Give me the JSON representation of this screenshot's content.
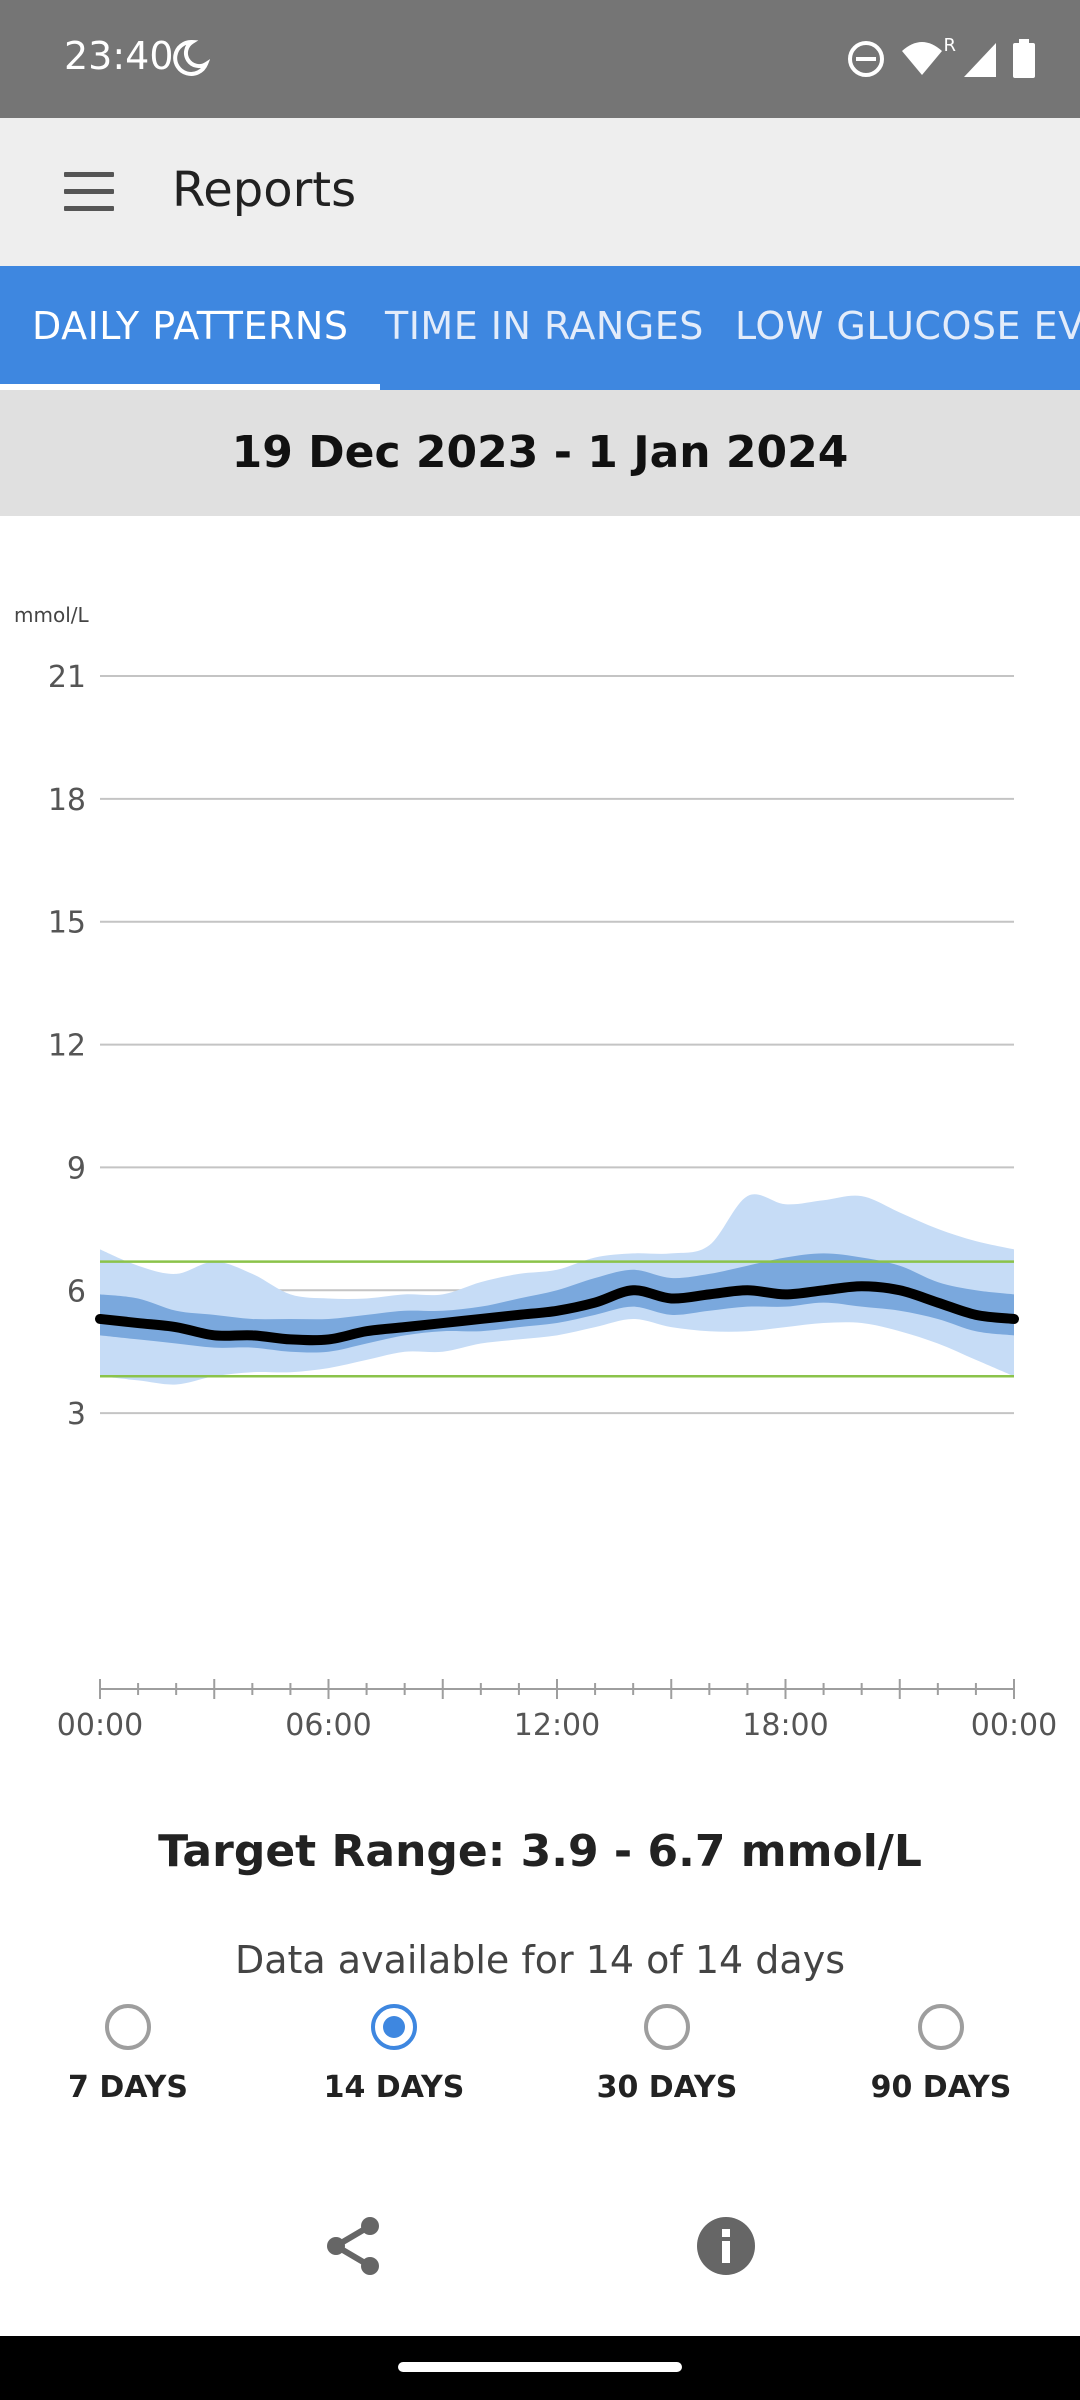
{
  "status_bar": {
    "time": "23:40",
    "icons": [
      "moon-icon",
      "dnd-icon",
      "wifi-icon",
      "signal-icon",
      "battery-icon"
    ],
    "roaming_label": "R"
  },
  "app_bar": {
    "title": "Reports",
    "menu_icon": "menu-icon"
  },
  "tabs": [
    {
      "label": "DAILY PATTERNS",
      "active": true
    },
    {
      "label": "TIME IN RANGES",
      "active": false
    },
    {
      "label": "LOW GLUCOSE EVENTS",
      "active": false
    }
  ],
  "date_range": "19 Dec 2023 - 1 Jan 2024",
  "chart_data": {
    "type": "area",
    "ylabel": "mmol/L",
    "ylim": [
      0,
      21
    ],
    "yticks": [
      3,
      6,
      9,
      12,
      15,
      18,
      21
    ],
    "xlim": [
      0,
      24
    ],
    "xtick_labels": [
      "00:00",
      "06:00",
      "12:00",
      "18:00",
      "00:00"
    ],
    "xtick_values": [
      0,
      6,
      12,
      18,
      24
    ],
    "target_range": [
      3.9,
      6.7
    ],
    "x": [
      0,
      1,
      2,
      3,
      4,
      5,
      6,
      7,
      8,
      9,
      10,
      11,
      12,
      13,
      14,
      15,
      16,
      17,
      18,
      19,
      20,
      21,
      22,
      23,
      24
    ],
    "series": [
      {
        "role": "p10",
        "values": [
          3.9,
          3.8,
          3.7,
          3.9,
          4.0,
          4.0,
          4.1,
          4.3,
          4.5,
          4.5,
          4.7,
          4.8,
          4.9,
          5.1,
          5.3,
          5.1,
          5.0,
          5.0,
          5.1,
          5.2,
          5.2,
          5.0,
          4.7,
          4.3,
          3.9
        ]
      },
      {
        "role": "p25",
        "values": [
          4.9,
          4.8,
          4.7,
          4.6,
          4.6,
          4.5,
          4.5,
          4.7,
          4.9,
          5.0,
          5.0,
          5.1,
          5.2,
          5.4,
          5.6,
          5.4,
          5.5,
          5.6,
          5.6,
          5.7,
          5.6,
          5.5,
          5.3,
          5.0,
          4.9
        ]
      },
      {
        "role": "median",
        "values": [
          5.3,
          5.2,
          5.1,
          4.9,
          4.9,
          4.8,
          4.8,
          5.0,
          5.1,
          5.2,
          5.3,
          5.4,
          5.5,
          5.7,
          6.0,
          5.8,
          5.9,
          6.0,
          5.9,
          6.0,
          6.1,
          6.0,
          5.7,
          5.4,
          5.3
        ]
      },
      {
        "role": "p75",
        "values": [
          5.9,
          5.8,
          5.5,
          5.4,
          5.3,
          5.3,
          5.3,
          5.4,
          5.5,
          5.5,
          5.6,
          5.8,
          6.0,
          6.3,
          6.5,
          6.3,
          6.4,
          6.6,
          6.8,
          6.9,
          6.8,
          6.6,
          6.2,
          6.0,
          5.9
        ]
      },
      {
        "role": "p90",
        "values": [
          7.0,
          6.6,
          6.4,
          6.7,
          6.4,
          5.9,
          5.8,
          5.8,
          5.9,
          5.9,
          6.2,
          6.4,
          6.5,
          6.8,
          6.9,
          6.9,
          7.1,
          8.3,
          8.1,
          8.2,
          8.3,
          7.9,
          7.5,
          7.2,
          7.0
        ]
      }
    ],
    "colors": {
      "outer_band": "#c6dcf6",
      "inner_band": "#7aa8dd",
      "median": "#000000",
      "target": "#8bc34a",
      "grid": "#c4c4c4"
    }
  },
  "target_range_text": "Target Range: 3.9 - 6.7 mmol/L",
  "data_available_text": "Data available for 14 of 14 days",
  "periods": [
    {
      "label": "7 DAYS",
      "selected": false
    },
    {
      "label": "14 DAYS",
      "selected": true
    },
    {
      "label": "30 DAYS",
      "selected": false
    },
    {
      "label": "90 DAYS",
      "selected": false
    }
  ],
  "actions": {
    "share_icon": "share-icon",
    "info_icon": "info-icon"
  }
}
